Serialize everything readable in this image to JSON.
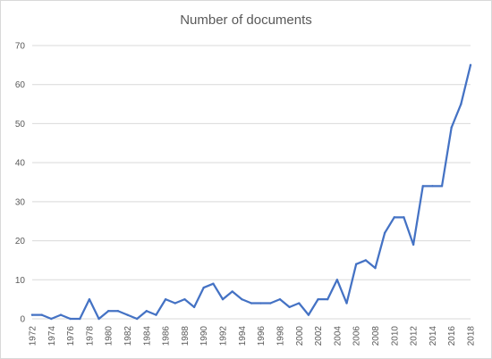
{
  "chart_data": {
    "type": "line",
    "title": "Number of documents",
    "xlabel": "",
    "ylabel": "",
    "x": [
      1972,
      1973,
      1974,
      1975,
      1976,
      1977,
      1978,
      1979,
      1980,
      1981,
      1982,
      1983,
      1984,
      1985,
      1986,
      1987,
      1988,
      1989,
      1990,
      1991,
      1992,
      1993,
      1994,
      1995,
      1996,
      1997,
      1998,
      1999,
      2000,
      2001,
      2002,
      2003,
      2004,
      2005,
      2006,
      2007,
      2008,
      2009,
      2010,
      2011,
      2012,
      2013,
      2014,
      2015,
      2016,
      2017,
      2018
    ],
    "x_tick_labels": [
      "1972",
      "1974",
      "1976",
      "1978",
      "1980",
      "1982",
      "1984",
      "1986",
      "1988",
      "1990",
      "1992",
      "1994",
      "1996",
      "1998",
      "2000",
      "2002",
      "2004",
      "2006",
      "2008",
      "2010",
      "2012",
      "2014",
      "2016",
      "2018"
    ],
    "y_ticks": [
      0,
      10,
      20,
      30,
      40,
      50,
      60,
      70
    ],
    "ylim": [
      0,
      70
    ],
    "grid": "horizontal",
    "legend": "none",
    "series": [
      {
        "color": "#4472c4",
        "values": [
          1,
          1,
          0,
          1,
          0,
          0,
          5,
          0,
          2,
          2,
          1,
          0,
          2,
          1,
          5,
          4,
          5,
          3,
          8,
          9,
          5,
          7,
          5,
          4,
          4,
          4,
          5,
          3,
          4,
          1,
          5,
          5,
          10,
          4,
          14,
          15,
          13,
          22,
          26,
          26,
          19,
          34,
          34,
          34,
          49,
          55,
          65
        ]
      }
    ],
    "gridline_color": "#d9d9d9"
  }
}
